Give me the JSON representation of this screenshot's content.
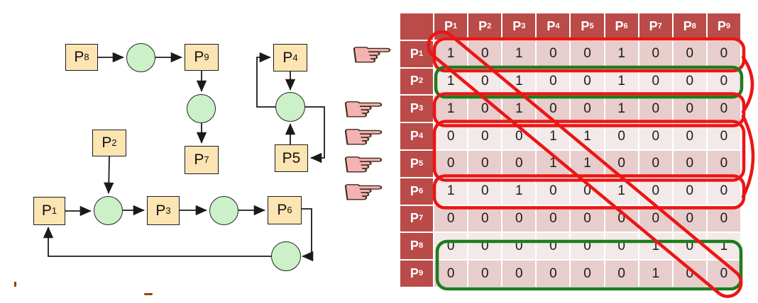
{
  "diagram": {
    "description": "process-resource graph",
    "nodes": [
      {
        "id": "p8",
        "main": "P",
        "sub": "8"
      },
      {
        "id": "p9",
        "main": "P",
        "sub": "9"
      },
      {
        "id": "p4",
        "main": "P",
        "sub": "4"
      },
      {
        "id": "p7",
        "main": "P",
        "sub": "7"
      },
      {
        "id": "p5",
        "main": "P5",
        "sub": ""
      },
      {
        "id": "p2",
        "main": "P",
        "sub": "2"
      },
      {
        "id": "p1",
        "main": "P",
        "sub": "1"
      },
      {
        "id": "p3",
        "main": "P",
        "sub": "3"
      },
      {
        "id": "p6",
        "main": "P",
        "sub": "6"
      }
    ],
    "node_fill": "#fce5b2",
    "circle_fill": "#ccf0c7"
  },
  "matrix": {
    "corner": "",
    "col_headers": [
      {
        "main": "P",
        "sub": "1"
      },
      {
        "main": "P",
        "sub": "2"
      },
      {
        "main": "P",
        "sub": "3"
      },
      {
        "main": "P",
        "sub": "4"
      },
      {
        "main": "P",
        "sub": "5"
      },
      {
        "main": "P",
        "sub": "6"
      },
      {
        "main": "P",
        "sub": "7"
      },
      {
        "main": "P",
        "sub": "8"
      },
      {
        "main": "P",
        "sub": "9"
      }
    ],
    "rows": [
      {
        "main": "P",
        "sub": "1",
        "values": [
          "1",
          "0",
          "1",
          "0",
          "0",
          "1",
          "0",
          "0",
          "0"
        ],
        "pointer": true
      },
      {
        "main": "P",
        "sub": "2",
        "values": [
          "1",
          "0",
          "1",
          "0",
          "0",
          "1",
          "0",
          "0",
          "0"
        ],
        "pointer": false
      },
      {
        "main": "P",
        "sub": "3",
        "values": [
          "1",
          "0",
          "1",
          "0",
          "0",
          "1",
          "0",
          "0",
          "0"
        ],
        "pointer": true
      },
      {
        "main": "P",
        "sub": "4",
        "values": [
          "0",
          "0",
          "0",
          "1",
          "1",
          "0",
          "0",
          "0",
          "0"
        ],
        "pointer": true
      },
      {
        "main": "P",
        "sub": "5",
        "values": [
          "0",
          "0",
          "0",
          "1",
          "1",
          "0",
          "0",
          "0",
          "0"
        ],
        "pointer": true
      },
      {
        "main": "P",
        "sub": "6",
        "values": [
          "1",
          "0",
          "1",
          "0",
          "0",
          "1",
          "0",
          "0",
          "0"
        ],
        "pointer": true
      },
      {
        "main": "P",
        "sub": "7",
        "values": [
          "0",
          "0",
          "0",
          "0",
          "0",
          "0",
          "0",
          "0",
          "0"
        ],
        "pointer": false
      },
      {
        "main": "P",
        "sub": "8",
        "values": [
          "0",
          "0",
          "0",
          "0",
          "0",
          "0",
          "1",
          "0",
          "1"
        ],
        "pointer": false
      },
      {
        "main": "P",
        "sub": "9",
        "values": [
          "0",
          "0",
          "0",
          "0",
          "0",
          "0",
          "1",
          "0",
          "0"
        ],
        "pointer": false
      }
    ],
    "header_bg": "#ba4b49",
    "band_dark": "#e7cdcc",
    "band_light": "#f2e9e8"
  },
  "annotations": {
    "red_color": "#ec1515",
    "green_color": "#1e7c1e",
    "red_row_boxes": [
      "P1",
      "P3",
      "P4+P5",
      "P6"
    ],
    "green_row_boxes": [
      "P2",
      "P8+P9"
    ],
    "red_diagonal_highlight": "main diagonal P1..P9",
    "red_arcs_right": [
      "P1-P3",
      "P3-P6"
    ],
    "pointer_hand_glyph": "☛",
    "pointer_rows": [
      "P1",
      "P3",
      "P4",
      "P5",
      "P6"
    ]
  }
}
